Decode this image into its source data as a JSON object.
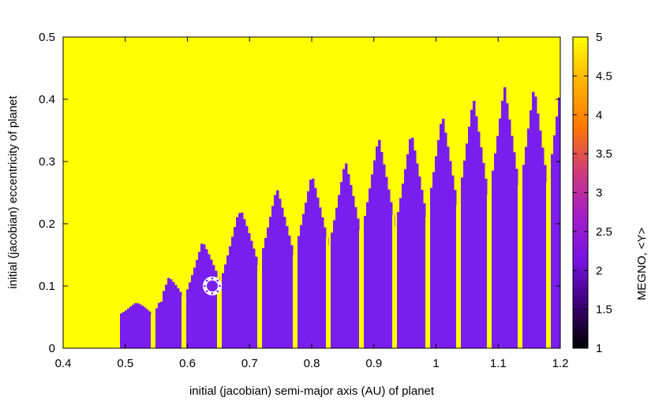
{
  "chart_data": {
    "type": "heatmap",
    "title": "",
    "xlabel": "initial (jacobian) semi-major axis (AU) of planet",
    "ylabel": "initial (jacobian) eccentricity of planet",
    "colorbar_label": "MEGNO, <Y>",
    "xlim": [
      0.4,
      1.2
    ],
    "ylim": [
      0,
      0.5
    ],
    "zlim": [
      1,
      5
    ],
    "x_ticks": [
      "0.4",
      "0.5",
      "0.6",
      "0.7",
      "0.8",
      "0.9",
      "1",
      "1.1",
      "1.2"
    ],
    "y_ticks": [
      "0",
      "0.1",
      "0.2",
      "0.3",
      "0.4",
      "0.5"
    ],
    "colorbar_ticks": [
      "1",
      "1.5",
      "2",
      "2.5",
      "3",
      "3.5",
      "4",
      "4.5",
      "5"
    ],
    "colormap": [
      "#000000",
      "#3c0078",
      "#7814e6",
      "#a51ec8",
      "#d23c78",
      "#ff7800",
      "#ffb400",
      "#ffff00"
    ],
    "chaotic_color": "#ffff00",
    "regular_color": "#7a1ef0",
    "marker": {
      "x": 0.64,
      "y": 0.1,
      "symbol": "sun-icon"
    },
    "chaotic_boundary": {
      "x": [
        0.4,
        0.45,
        0.5,
        0.55,
        0.6,
        0.65,
        0.7,
        0.75,
        0.8,
        0.85,
        0.9,
        0.95,
        1.0,
        1.05,
        1.1,
        1.15,
        1.2
      ],
      "e": [
        0.0,
        0.03,
        0.06,
        0.1,
        0.15,
        0.19,
        0.23,
        0.26,
        0.28,
        0.31,
        0.34,
        0.36,
        0.39,
        0.42,
        0.44,
        0.46,
        0.48
      ]
    },
    "resonance_spikes": [
      0.545,
      0.595,
      0.653,
      0.715,
      0.772,
      0.828,
      0.88,
      0.935,
      0.985,
      1.035,
      1.085,
      1.135,
      1.18
    ]
  }
}
